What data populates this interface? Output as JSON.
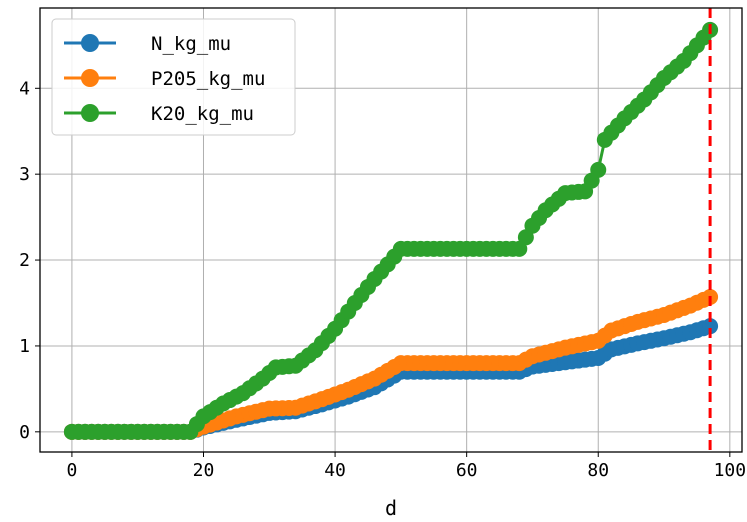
{
  "chart_data": {
    "type": "line",
    "xlabel": "d",
    "ylabel": "",
    "title": "",
    "xlim": [
      -4.85,
      101.85
    ],
    "ylim": [
      -0.235,
      4.935
    ],
    "x_ticks": [
      0,
      20,
      40,
      60,
      80,
      100
    ],
    "y_ticks": [
      0,
      1,
      2,
      3,
      4
    ],
    "grid": true,
    "legend_position": "upper-left",
    "vline": {
      "x": 97,
      "color": "#ff0000",
      "style": "dashed"
    },
    "series": [
      {
        "name": "N_kg_mu",
        "color": "#1f77b4",
        "points": [
          [
            0,
            0
          ],
          [
            18,
            0
          ],
          [
            20,
            0.05
          ],
          [
            25,
            0.14
          ],
          [
            30,
            0.22
          ],
          [
            34,
            0.24
          ],
          [
            38,
            0.32
          ],
          [
            42,
            0.41
          ],
          [
            46,
            0.52
          ],
          [
            50,
            0.7
          ],
          [
            55,
            0.7
          ],
          [
            60,
            0.7
          ],
          [
            65,
            0.7
          ],
          [
            68,
            0.7
          ],
          [
            70,
            0.76
          ],
          [
            75,
            0.81
          ],
          [
            80,
            0.86
          ],
          [
            82,
            0.96
          ],
          [
            86,
            1.03
          ],
          [
            90,
            1.09
          ],
          [
            94,
            1.16
          ],
          [
            97,
            1.23
          ]
        ]
      },
      {
        "name": "P205_kg_mu",
        "color": "#ff7f0e",
        "points": [
          [
            0,
            0
          ],
          [
            18,
            0
          ],
          [
            20,
            0.06
          ],
          [
            25,
            0.18
          ],
          [
            30,
            0.27
          ],
          [
            34,
            0.28
          ],
          [
            38,
            0.38
          ],
          [
            42,
            0.49
          ],
          [
            46,
            0.62
          ],
          [
            50,
            0.8
          ],
          [
            55,
            0.8
          ],
          [
            60,
            0.8
          ],
          [
            65,
            0.8
          ],
          [
            68,
            0.8
          ],
          [
            70,
            0.88
          ],
          [
            75,
            0.98
          ],
          [
            80,
            1.06
          ],
          [
            82,
            1.18
          ],
          [
            86,
            1.28
          ],
          [
            90,
            1.36
          ],
          [
            94,
            1.47
          ],
          [
            97,
            1.57
          ]
        ]
      },
      {
        "name": "K20_kg_mu",
        "color": "#2ca02c",
        "points": [
          [
            0,
            0
          ],
          [
            18,
            0
          ],
          [
            20,
            0.18
          ],
          [
            23,
            0.33
          ],
          [
            26,
            0.45
          ],
          [
            29,
            0.62
          ],
          [
            31,
            0.75
          ],
          [
            34,
            0.77
          ],
          [
            37,
            0.95
          ],
          [
            40,
            1.2
          ],
          [
            43,
            1.5
          ],
          [
            46,
            1.78
          ],
          [
            48,
            1.95
          ],
          [
            50,
            2.13
          ],
          [
            55,
            2.13
          ],
          [
            60,
            2.13
          ],
          [
            65,
            2.13
          ],
          [
            68,
            2.13
          ],
          [
            70,
            2.4
          ],
          [
            72,
            2.58
          ],
          [
            75,
            2.78
          ],
          [
            78,
            2.8
          ],
          [
            80,
            3.05
          ],
          [
            81,
            3.4
          ],
          [
            84,
            3.65
          ],
          [
            87,
            3.87
          ],
          [
            90,
            4.12
          ],
          [
            93,
            4.32
          ],
          [
            95,
            4.5
          ],
          [
            97,
            4.68
          ]
        ]
      }
    ]
  }
}
